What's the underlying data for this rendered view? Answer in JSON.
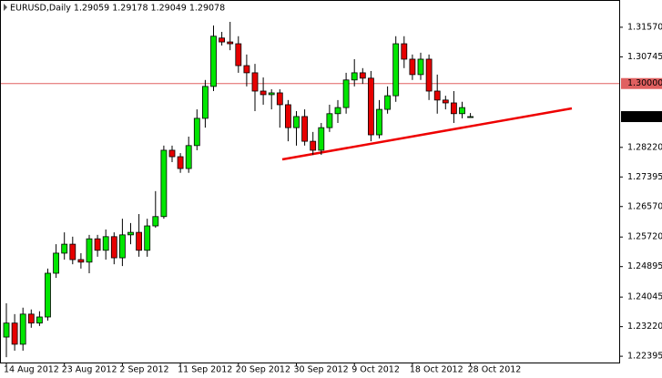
{
  "chart_data": {
    "type": "candlestick",
    "title": "EURUSD,Daily  1.29059 1.29178 1.29049 1.29078",
    "categories": [
      "14 Aug 2012",
      null,
      null,
      null,
      null,
      null,
      null,
      "23 Aug 2012",
      null,
      null,
      null,
      null,
      null,
      null,
      "2 Sep 2012",
      null,
      null,
      null,
      null,
      null,
      null,
      "11 Sep 2012",
      null,
      null,
      null,
      null,
      null,
      null,
      "20 Sep 2012",
      null,
      null,
      null,
      null,
      null,
      null,
      "30 Sep 2012",
      null,
      null,
      null,
      null,
      null,
      null,
      "9 Oct 2012",
      null,
      null,
      null,
      null,
      null,
      null,
      "18 Oct 2012",
      null,
      null,
      null,
      null,
      null,
      null,
      "28 Oct 2012"
    ],
    "open": [
      1.2293,
      1.2332,
      1.2273,
      1.2357,
      1.2332,
      1.2349,
      1.2471,
      1.2527,
      1.2552,
      1.2509,
      1.2502,
      1.2567,
      1.2535,
      1.2573,
      1.2514,
      1.2578,
      1.2585,
      1.2535,
      1.2603,
      1.2629,
      1.2814,
      1.2796,
      1.2763,
      1.2827,
      1.2903,
      1.2992,
      1.3127,
      1.3116,
      1.3111,
      1.305,
      1.303,
      1.2979,
      1.2969,
      1.2974,
      1.2941,
      1.2877,
      1.2908,
      1.2839,
      1.2814,
      1.2877,
      1.2916,
      1.2933,
      1.301,
      1.303,
      1.3015,
      1.2857,
      1.2928,
      1.2966,
      1.3111,
      1.3068,
      1.3025,
      1.3068,
      1.2979,
      1.2954,
      1.2946,
      1.2916,
      1.29059
    ],
    "high": [
      1.2387,
      1.2357,
      1.2375,
      1.237,
      1.2365,
      1.2484,
      1.2552,
      1.2585,
      1.2573,
      1.2527,
      1.2578,
      1.2578,
      1.2593,
      1.2585,
      1.2623,
      1.2611,
      1.2636,
      1.2623,
      1.27,
      1.2827,
      1.2827,
      1.2806,
      1.2852,
      1.2928,
      1.301,
      1.3162,
      1.3144,
      1.3172,
      1.3132,
      1.3081,
      1.3055,
      1.3017,
      1.2984,
      1.2984,
      1.2954,
      1.2923,
      1.2928,
      1.2865,
      1.289,
      1.2941,
      1.2954,
      1.303,
      1.3068,
      1.3043,
      1.3035,
      1.2954,
      1.2992,
      1.3132,
      1.3132,
      1.3081,
      1.3086,
      1.3081,
      1.3025,
      1.2966,
      1.2979,
      1.2949,
      1.29178
    ],
    "low": [
      1.2237,
      1.2255,
      1.2255,
      1.2319,
      1.2324,
      1.2339,
      1.2458,
      1.2509,
      1.2496,
      1.2484,
      1.2471,
      1.2517,
      1.2509,
      1.2496,
      1.2491,
      1.2552,
      1.2517,
      1.2517,
      1.2598,
      1.2623,
      1.2781,
      1.2751,
      1.2751,
      1.2814,
      1.2877,
      1.2979,
      1.3106,
      1.3093,
      1.303,
      1.2992,
      1.2923,
      1.2941,
      1.2928,
      1.2877,
      1.2839,
      1.2827,
      1.2827,
      1.2801,
      1.2801,
      1.2865,
      1.289,
      1.2916,
      1.2992,
      1.2999,
      1.2839,
      1.2847,
      1.2916,
      1.2949,
      1.3043,
      1.301,
      1.301,
      1.2954,
      1.2916,
      1.2928,
      1.289,
      1.2903,
      1.29049
    ],
    "close": [
      1.2332,
      1.2273,
      1.2357,
      1.2332,
      1.2349,
      1.2471,
      1.2527,
      1.2552,
      1.2509,
      1.2502,
      1.2567,
      1.2535,
      1.2573,
      1.2514,
      1.2578,
      1.2585,
      1.2535,
      1.2603,
      1.2629,
      1.2814,
      1.2796,
      1.2763,
      1.2827,
      1.2903,
      1.2992,
      1.3132,
      1.3116,
      1.3111,
      1.305,
      1.303,
      1.2979,
      1.2969,
      1.2974,
      1.2941,
      1.2877,
      1.2908,
      1.2839,
      1.2814,
      1.2877,
      1.2916,
      1.2933,
      1.301,
      1.303,
      1.3015,
      1.2857,
      1.2928,
      1.2966,
      1.3111,
      1.3068,
      1.3025,
      1.3068,
      1.2979,
      1.2954,
      1.2946,
      1.2916,
      1.2933,
      1.29078
    ],
    "up_color": "#00e600",
    "down_color": "#e60000",
    "ylim": [
      1.2222,
      1.3233
    ],
    "yticks": [
      {
        "value": 1.3157,
        "label": "1.31570"
      },
      {
        "value": 1.30745,
        "label": "1.30745"
      },
      {
        "value": 1.2822,
        "label": "1.28220"
      },
      {
        "value": 1.27395,
        "label": "1.27395"
      },
      {
        "value": 1.2657,
        "label": "1.26570"
      },
      {
        "value": 1.2572,
        "label": "1.25720"
      },
      {
        "value": 1.24895,
        "label": "1.24895"
      },
      {
        "value": 1.24045,
        "label": "1.24045"
      },
      {
        "value": 1.2322,
        "label": "1.23220"
      },
      {
        "value": 1.22395,
        "label": "1.22395"
      }
    ],
    "hline": {
      "value": 1.3,
      "label": "1.30000",
      "color": "#e06060"
    },
    "price_marker": {
      "value": 1.29078,
      "label": "1.29078"
    }
  }
}
